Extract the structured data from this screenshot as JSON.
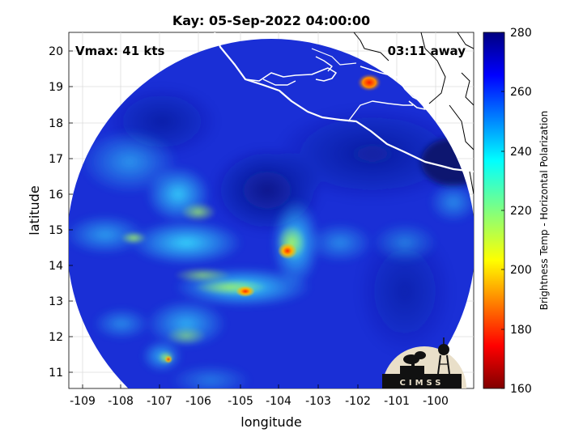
{
  "title": "Kay: 05-Sep-2022 04:00:00",
  "vmax_label": "Vmax: 41 kts",
  "time_away_label": "03:11 away",
  "xlabel": "longitude",
  "ylabel": "latitude",
  "x_ticks": [
    "-109",
    "-108",
    "-107",
    "-106",
    "-105",
    "-104",
    "-103",
    "-102",
    "-101",
    "-100"
  ],
  "y_ticks": [
    "20",
    "19",
    "18",
    "17",
    "16",
    "15",
    "14",
    "13",
    "12",
    "11"
  ],
  "colorbar": {
    "label": "Brightness Temp - Horizontal Polarization",
    "ticks": [
      "280",
      "260",
      "240",
      "220",
      "200",
      "180",
      "160"
    ],
    "range": [
      160,
      280
    ],
    "colormap": "jet"
  },
  "logo_text": "CIMSS",
  "colors": {
    "background_field": "#1a2fd6",
    "coast": "#ffffff",
    "border": "#000000"
  }
}
